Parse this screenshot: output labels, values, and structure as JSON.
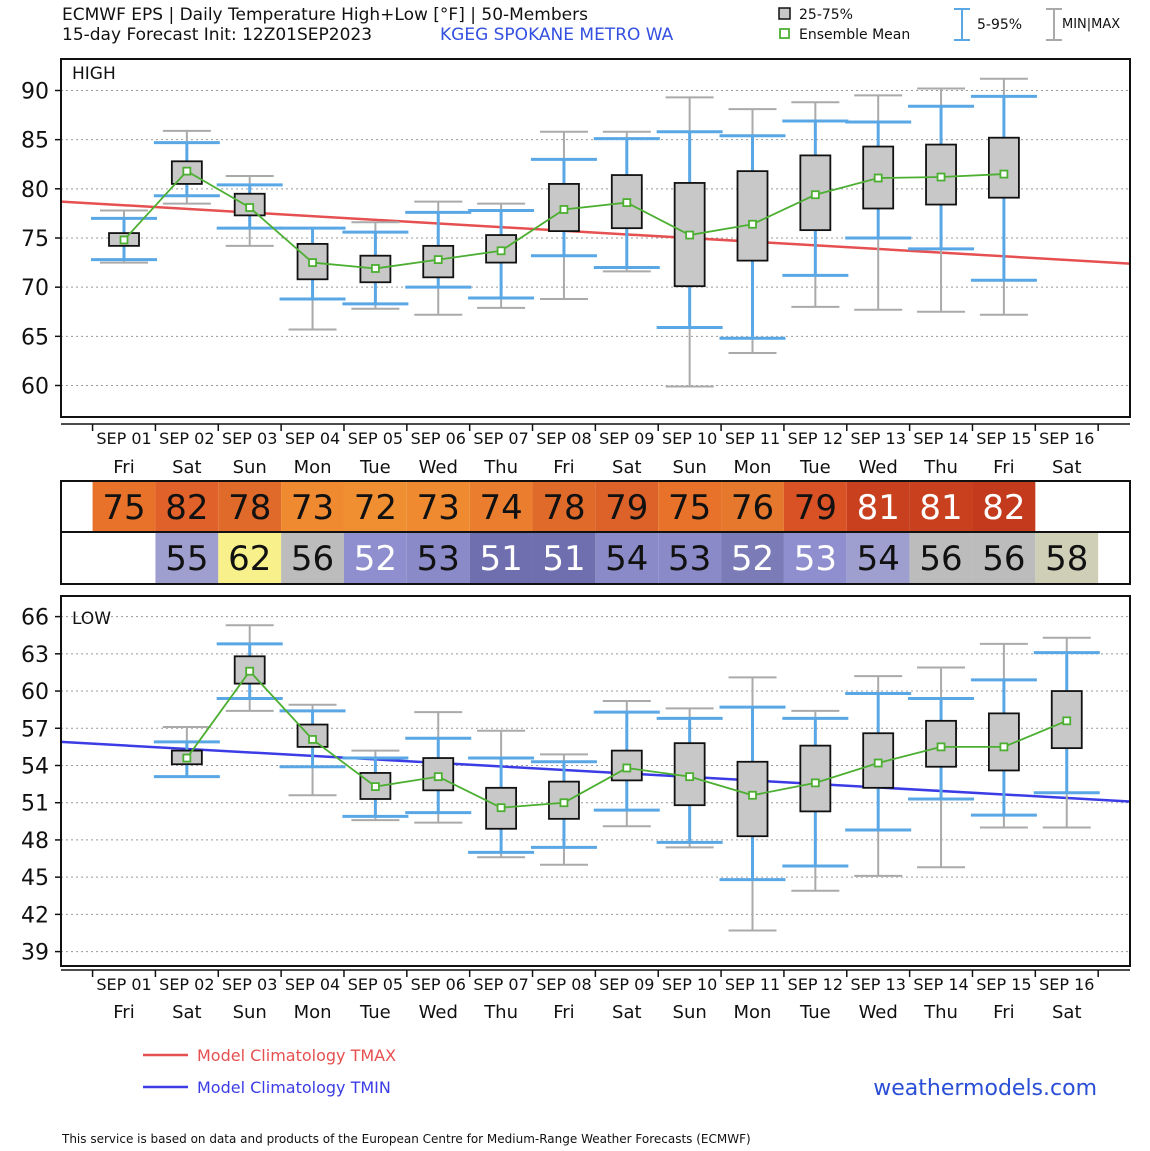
{
  "header": {
    "title_line1": "ECMWF EPS | Daily Temperature High+Low [°F] | 50-Members",
    "title_line2": "15-day Forecast Init: 12Z01SEP2023",
    "station": "KGEG  SPOKANE METRO  WA"
  },
  "legend": {
    "box": "25-75%",
    "mean": "Ensemble Mean",
    "whisker": "5-95%",
    "minmax": "MIN|MAX"
  },
  "colors": {
    "box_fill": "#c8c8c8",
    "whisker_5_95": "#5aa7e6",
    "minmax": "#aaaaaa",
    "ensemble_mean": "#4caf32",
    "tmax_climo": "#e65050",
    "tmin_climo": "#3c3ce6",
    "brand": "#2a4fd6"
  },
  "dates": [
    "SEP 01",
    "SEP 02",
    "SEP 03",
    "SEP 04",
    "SEP 05",
    "SEP 06",
    "SEP 07",
    "SEP 08",
    "SEP 09",
    "SEP 10",
    "SEP 11",
    "SEP 12",
    "SEP 13",
    "SEP 14",
    "SEP 15",
    "SEP 16"
  ],
  "weekdays": [
    "Fri",
    "Sat",
    "Sun",
    "Mon",
    "Tue",
    "Wed",
    "Thu",
    "Fri",
    "Sat",
    "Sun",
    "Mon",
    "Tue",
    "Wed",
    "Thu",
    "Fri",
    "Sat"
  ],
  "chart_data": [
    {
      "type": "box",
      "panel_label": "HIGH",
      "ylim": [
        57,
        93
      ],
      "yticks": [
        60,
        65,
        70,
        75,
        80,
        85,
        90
      ],
      "grid": true,
      "categories": [
        "SEP 01",
        "SEP 02",
        "SEP 03",
        "SEP 04",
        "SEP 05",
        "SEP 06",
        "SEP 07",
        "SEP 08",
        "SEP 09",
        "SEP 10",
        "SEP 11",
        "SEP 12",
        "SEP 13",
        "SEP 14",
        "SEP 15",
        "SEP 16"
      ],
      "boxes": [
        {
          "min": 72.5,
          "p5": 72.8,
          "q1": 74.2,
          "q3": 75.5,
          "p95": 77.0,
          "max": 77.8,
          "mean": 74.8
        },
        {
          "min": 78.5,
          "p5": 79.3,
          "q1": 80.5,
          "q3": 82.8,
          "p95": 84.7,
          "max": 85.9,
          "mean": 81.8
        },
        {
          "min": 74.2,
          "p5": 76.0,
          "q1": 77.3,
          "q3": 79.5,
          "p95": 80.4,
          "max": 81.3,
          "mean": 78.1
        },
        {
          "min": 65.7,
          "p5": 68.8,
          "q1": 70.8,
          "q3": 74.4,
          "p95": 76.0,
          "max": 76.0,
          "mean": 72.5
        },
        {
          "min": 67.8,
          "p5": 68.3,
          "q1": 70.5,
          "q3": 73.2,
          "p95": 75.6,
          "max": 76.6,
          "mean": 71.9
        },
        {
          "min": 67.2,
          "p5": 70.0,
          "q1": 71.0,
          "q3": 74.2,
          "p95": 77.6,
          "max": 78.7,
          "mean": 72.8
        },
        {
          "min": 67.9,
          "p5": 68.9,
          "q1": 72.5,
          "q3": 75.3,
          "p95": 77.8,
          "max": 78.5,
          "mean": 73.7
        },
        {
          "min": 68.8,
          "p5": 73.2,
          "q1": 75.7,
          "q3": 80.5,
          "p95": 83.0,
          "max": 85.8,
          "mean": 77.9
        },
        {
          "min": 71.6,
          "p5": 72.0,
          "q1": 76.0,
          "q3": 81.4,
          "p95": 85.1,
          "max": 85.8,
          "mean": 78.6
        },
        {
          "min": 59.9,
          "p5": 65.9,
          "q1": 70.1,
          "q3": 80.6,
          "p95": 85.8,
          "max": 89.3,
          "mean": 75.3
        },
        {
          "min": 63.3,
          "p5": 64.8,
          "q1": 72.7,
          "q3": 81.8,
          "p95": 85.4,
          "max": 88.1,
          "mean": 76.4
        },
        {
          "min": 68.0,
          "p5": 71.2,
          "q1": 75.8,
          "q3": 83.4,
          "p95": 86.9,
          "max": 88.8,
          "mean": 79.4
        },
        {
          "min": 67.7,
          "p5": 75.0,
          "q1": 78.0,
          "q3": 84.3,
          "p95": 86.8,
          "max": 89.5,
          "mean": 81.1
        },
        {
          "min": 67.5,
          "p5": 73.9,
          "q1": 78.4,
          "q3": 84.5,
          "p95": 88.4,
          "max": 90.2,
          "mean": 81.2
        },
        {
          "min": 67.2,
          "p5": 70.7,
          "q1": 79.1,
          "q3": 85.2,
          "p95": 89.4,
          "max": 91.2,
          "mean": 81.5
        },
        null
      ],
      "climatology_endpoints": [
        [
          -1.0,
          78.7
        ],
        [
          16.0,
          72.4
        ]
      ]
    },
    {
      "type": "box",
      "panel_label": "LOW",
      "ylim": [
        38,
        67.5
      ],
      "yticks": [
        39,
        42,
        45,
        48,
        51,
        54,
        57,
        60,
        63,
        66
      ],
      "grid": true,
      "categories": [
        "SEP 01",
        "SEP 02",
        "SEP 03",
        "SEP 04",
        "SEP 05",
        "SEP 06",
        "SEP 07",
        "SEP 08",
        "SEP 09",
        "SEP 10",
        "SEP 11",
        "SEP 12",
        "SEP 13",
        "SEP 14",
        "SEP 15",
        "SEP 16"
      ],
      "boxes": [
        null,
        {
          "min": 53.1,
          "p5": 53.1,
          "q1": 54.1,
          "q3": 55.2,
          "p95": 55.9,
          "max": 57.1,
          "mean": 54.6
        },
        {
          "min": 58.4,
          "p5": 59.4,
          "q1": 60.6,
          "q3": 62.8,
          "p95": 63.8,
          "max": 65.3,
          "mean": 61.6
        },
        {
          "min": 51.6,
          "p5": 53.9,
          "q1": 55.5,
          "q3": 57.3,
          "p95": 58.4,
          "max": 58.9,
          "mean": 56.1
        },
        {
          "min": 49.6,
          "p5": 49.9,
          "q1": 51.3,
          "q3": 53.4,
          "p95": 54.6,
          "max": 55.2,
          "mean": 52.3
        },
        {
          "min": 49.4,
          "p5": 50.2,
          "q1": 52.0,
          "q3": 54.6,
          "p95": 56.2,
          "max": 58.3,
          "mean": 53.1
        },
        {
          "min": 46.6,
          "p5": 47.0,
          "q1": 48.9,
          "q3": 52.2,
          "p95": 54.6,
          "max": 56.8,
          "mean": 50.6
        },
        {
          "min": 46.0,
          "p5": 47.4,
          "q1": 49.7,
          "q3": 52.7,
          "p95": 54.3,
          "max": 54.9,
          "mean": 51.0
        },
        {
          "min": 49.1,
          "p5": 50.4,
          "q1": 52.8,
          "q3": 55.2,
          "p95": 58.3,
          "max": 59.2,
          "mean": 53.8
        },
        {
          "min": 47.4,
          "p5": 47.8,
          "q1": 50.8,
          "q3": 55.8,
          "p95": 57.8,
          "max": 58.6,
          "mean": 53.1
        },
        {
          "min": 40.7,
          "p5": 44.8,
          "q1": 48.3,
          "q3": 54.3,
          "p95": 58.7,
          "max": 61.1,
          "mean": 51.6
        },
        {
          "min": 43.9,
          "p5": 45.9,
          "q1": 50.3,
          "q3": 55.6,
          "p95": 57.8,
          "max": 58.4,
          "mean": 52.6
        },
        {
          "min": 45.1,
          "p5": 48.8,
          "q1": 52.2,
          "q3": 56.6,
          "p95": 59.8,
          "max": 61.2,
          "mean": 54.2
        },
        {
          "min": 45.8,
          "p5": 51.3,
          "q1": 53.9,
          "q3": 57.6,
          "p95": 59.4,
          "max": 61.9,
          "mean": 55.5
        },
        {
          "min": 49.0,
          "p5": 50.0,
          "q1": 53.6,
          "q3": 58.2,
          "p95": 60.9,
          "max": 63.8,
          "mean": 55.5
        },
        {
          "min": 49.0,
          "p5": 51.8,
          "q1": 55.4,
          "q3": 60.0,
          "p95": 63.1,
          "max": 64.3,
          "mean": 57.6
        }
      ],
      "climatology_endpoints": [
        [
          -1.0,
          55.9
        ],
        [
          16.0,
          51.1
        ]
      ]
    }
  ],
  "summary": {
    "high_values": [
      "75",
      "82",
      "78",
      "73",
      "72",
      "73",
      "74",
      "78",
      "79",
      "75",
      "76",
      "79",
      "81",
      "81",
      "82",
      ""
    ],
    "high_colors": [
      "#e8722a",
      "#e0622a",
      "#e06a2a",
      "#ef8a30",
      "#ef8f32",
      "#ef8a30",
      "#eb7e2e",
      "#e06a2a",
      "#dc622a",
      "#e8722a",
      "#e5782c",
      "#d95226",
      "#c8401e",
      "#c8401e",
      "#c43a1c",
      ""
    ],
    "low_values": [
      "",
      "55",
      "62",
      "56",
      "52",
      "53",
      "51",
      "51",
      "54",
      "53",
      "52",
      "53",
      "54",
      "56",
      "56",
      "58"
    ],
    "low_colors": [
      "",
      "#9e9ecf",
      "#f8f08a",
      "#bcbcbc",
      "#8f8fcf",
      "#8a8ac8",
      "#6f6fb0",
      "#6f6fb0",
      "#8a8ac8",
      "#8a8ac8",
      "#7b7bb8",
      "#8f8fcf",
      "#9e9ecf",
      "#bcbcbc",
      "#bcbcbc",
      "#cfcfb8"
    ],
    "low_text_colors": [
      "",
      "#111111",
      "#111111",
      "#111111",
      "#ffffff",
      "#111111",
      "#ffffff",
      "#ffffff",
      "#111111",
      "#111111",
      "#ffffff",
      "#ffffff",
      "#111111",
      "#111111",
      "#111111",
      "#111111"
    ]
  },
  "footer": {
    "climo_tmax": "Model Climatology TMAX",
    "climo_tmin": "Model Climatology TMIN",
    "brand": "weathermodels.com",
    "notice": "This service is based on data and products of the European Centre for Medium-Range Weather Forecasts (ECMWF)"
  }
}
